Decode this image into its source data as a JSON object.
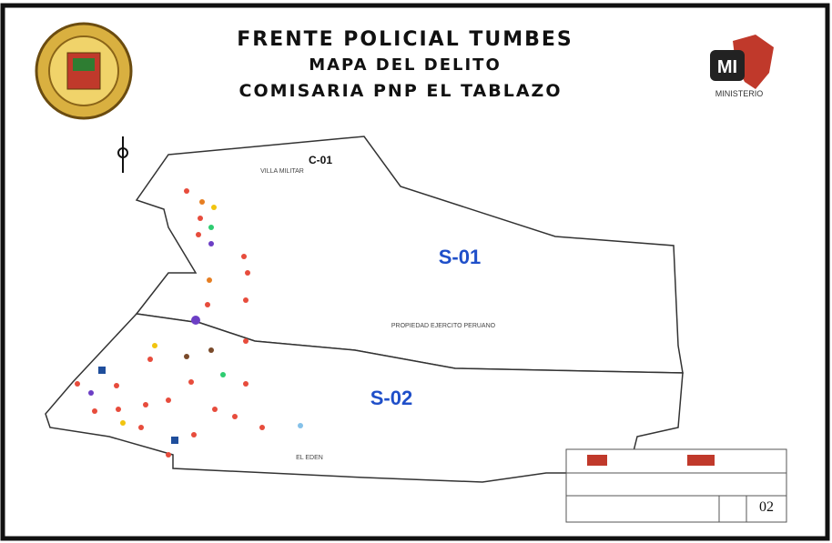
{
  "header": {
    "title": "FRENTE POLICIAL TUMBES",
    "subtitle": "MAPA DEL DELITO",
    "station": "COMISARIA PNP EL TABLAZO",
    "ministry": "MINISTERIO"
  },
  "map": {
    "zone": "C-01",
    "sectors": [
      "S-01",
      "S-02"
    ],
    "places": [
      "VILLA MILITAR",
      "PROPIEDAD EJERCITO PERUANO",
      "EL EDEN"
    ]
  },
  "title_block": {
    "sheet": "02"
  }
}
